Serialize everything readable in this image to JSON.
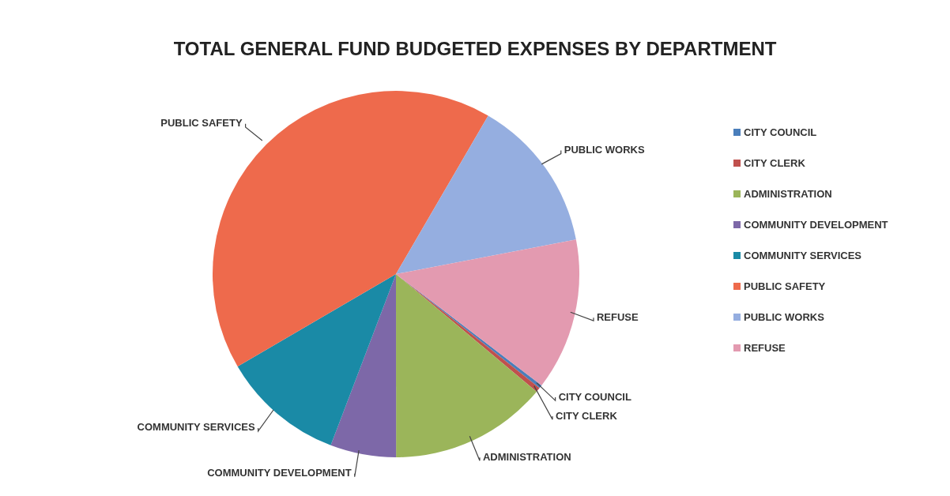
{
  "chart_data": {
    "type": "pie",
    "title": "TOTAL GENERAL FUND BUDGETED EXPENSES BY DEPARTMENT",
    "categories": [
      "CITY COUNCIL",
      "CITY CLERK",
      "ADMINISTRATION",
      "COMMUNITY DEVELOPMENT",
      "COMMUNITY SERVICES",
      "PUBLIC SAFETY",
      "PUBLIC WORKS",
      "REFUSE"
    ],
    "values": [
      0.3,
      0.4,
      13.9,
      5.8,
      10.8,
      41.8,
      13.6,
      13.4
    ],
    "colors": [
      "#4a7ebb",
      "#c0504d",
      "#9bb55a",
      "#7d68a8",
      "#1a8aa6",
      "#ee6a4c",
      "#95aee0",
      "#e39ab0"
    ],
    "legend": "right"
  }
}
